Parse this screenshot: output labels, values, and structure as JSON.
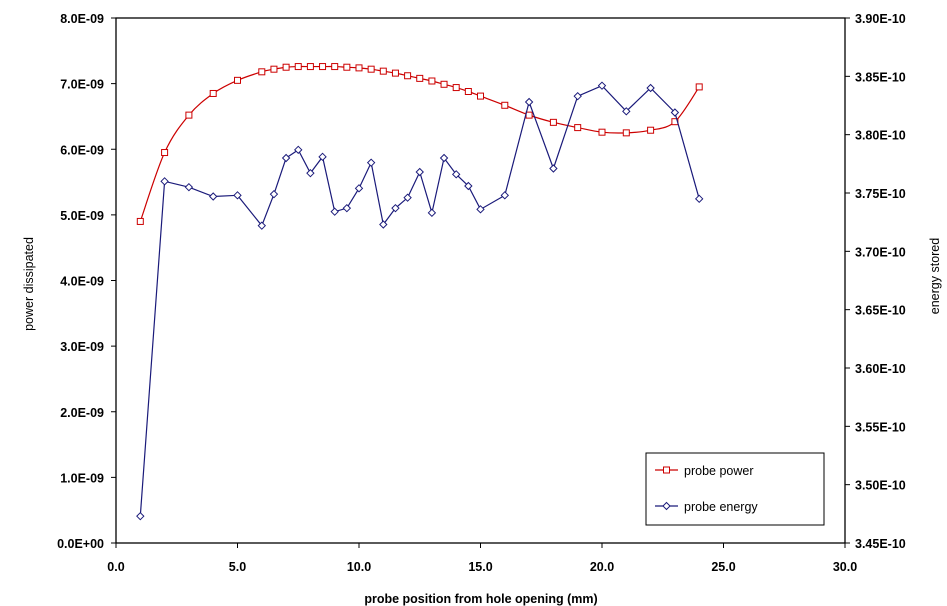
{
  "chart_data": {
    "type": "line",
    "title": "",
    "xlabel": "probe position from hole opening (mm)",
    "ylabel": "power dissipated",
    "y2label": "energy stored",
    "xlim": [
      0,
      30
    ],
    "ylim": [
      0,
      8e-09
    ],
    "y2lim": [
      3.45e-10,
      3.9e-10
    ],
    "x_ticks": [
      "0.0",
      "5.0",
      "10.0",
      "15.0",
      "20.0",
      "25.0",
      "30.0"
    ],
    "y_ticks": [
      "0.0E+00",
      "1.0E-09",
      "2.0E-09",
      "3.0E-09",
      "4.0E-09",
      "5.0E-09",
      "6.0E-09",
      "7.0E-09",
      "8.0E-09"
    ],
    "y2_ticks": [
      "3.45E-10",
      "3.50E-10",
      "3.55E-10",
      "3.60E-10",
      "3.65E-10",
      "3.70E-10",
      "3.75E-10",
      "3.80E-10",
      "3.85E-10",
      "3.90E-10"
    ],
    "grid": false,
    "legend_position": "bottom-right",
    "series": [
      {
        "name": "probe power",
        "axis": "left",
        "color": "#cc0000",
        "marker": "square",
        "x": [
          1,
          2,
          3,
          4,
          5,
          6,
          6.5,
          7,
          7.5,
          8,
          8.5,
          9,
          9.5,
          10,
          10.5,
          11,
          11.5,
          12,
          12.5,
          13,
          13.5,
          14,
          14.5,
          15,
          16,
          17,
          18,
          19,
          20,
          21,
          22,
          23,
          24
        ],
        "y": [
          4.9e-09,
          5.95e-09,
          6.52e-09,
          6.85e-09,
          7.05e-09,
          7.18e-09,
          7.22e-09,
          7.25e-09,
          7.26e-09,
          7.26e-09,
          7.26e-09,
          7.26e-09,
          7.25e-09,
          7.24e-09,
          7.22e-09,
          7.19e-09,
          7.16e-09,
          7.12e-09,
          7.08e-09,
          7.04e-09,
          6.99e-09,
          6.94e-09,
          6.88e-09,
          6.81e-09,
          6.67e-09,
          6.52e-09,
          6.41e-09,
          6.33e-09,
          6.26e-09,
          6.25e-09,
          6.29e-09,
          6.42e-09,
          6.95e-09
        ]
      },
      {
        "name": "probe energy",
        "axis": "right",
        "color": "#1a1a7a",
        "marker": "diamond",
        "x": [
          1,
          2,
          3,
          4,
          5,
          6,
          6.5,
          7,
          7.5,
          8,
          8.5,
          9,
          9.5,
          10,
          10.5,
          11,
          11.5,
          12,
          12.5,
          13,
          13.5,
          14,
          14.5,
          15,
          16,
          17,
          18,
          19,
          20,
          21,
          22,
          23,
          24
        ],
        "y": [
          3.473e-10,
          3.76e-10,
          3.755e-10,
          3.747e-10,
          3.748e-10,
          3.722e-10,
          3.749e-10,
          3.78e-10,
          3.787e-10,
          3.767e-10,
          3.781e-10,
          3.734e-10,
          3.737e-10,
          3.754e-10,
          3.776e-10,
          3.723e-10,
          3.737e-10,
          3.746e-10,
          3.768e-10,
          3.733e-10,
          3.78e-10,
          3.766e-10,
          3.756e-10,
          3.736e-10,
          3.748e-10,
          3.828e-10,
          3.771e-10,
          3.833e-10,
          3.842e-10,
          3.82e-10,
          3.84e-10,
          3.819e-10,
          3.745e-10
        ]
      }
    ]
  }
}
